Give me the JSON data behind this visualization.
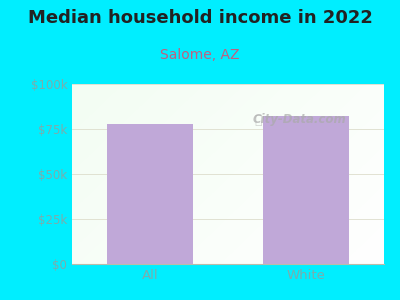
{
  "title": "Median household income in 2022",
  "subtitle": "Salome, AZ",
  "categories": [
    "All",
    "White"
  ],
  "values": [
    78000,
    82000
  ],
  "bar_color": "#c0a8d8",
  "background_color": "#00eeff",
  "plot_bg_color_topleft": "#d8eed8",
  "plot_bg_color_topright": "#eef8ee",
  "plot_bg_color_bottom": "#ffffff",
  "title_fontsize": 13,
  "subtitle_fontsize": 10,
  "subtitle_color": "#c06080",
  "tick_label_color": "#7aadad",
  "ylim": [
    0,
    100000
  ],
  "yticks": [
    0,
    25000,
    50000,
    75000,
    100000
  ],
  "ytick_labels": [
    "$0",
    "$25k",
    "$50k",
    "$75k",
    "$100k"
  ],
  "watermark": "City-Data.com",
  "bar_width": 0.55
}
